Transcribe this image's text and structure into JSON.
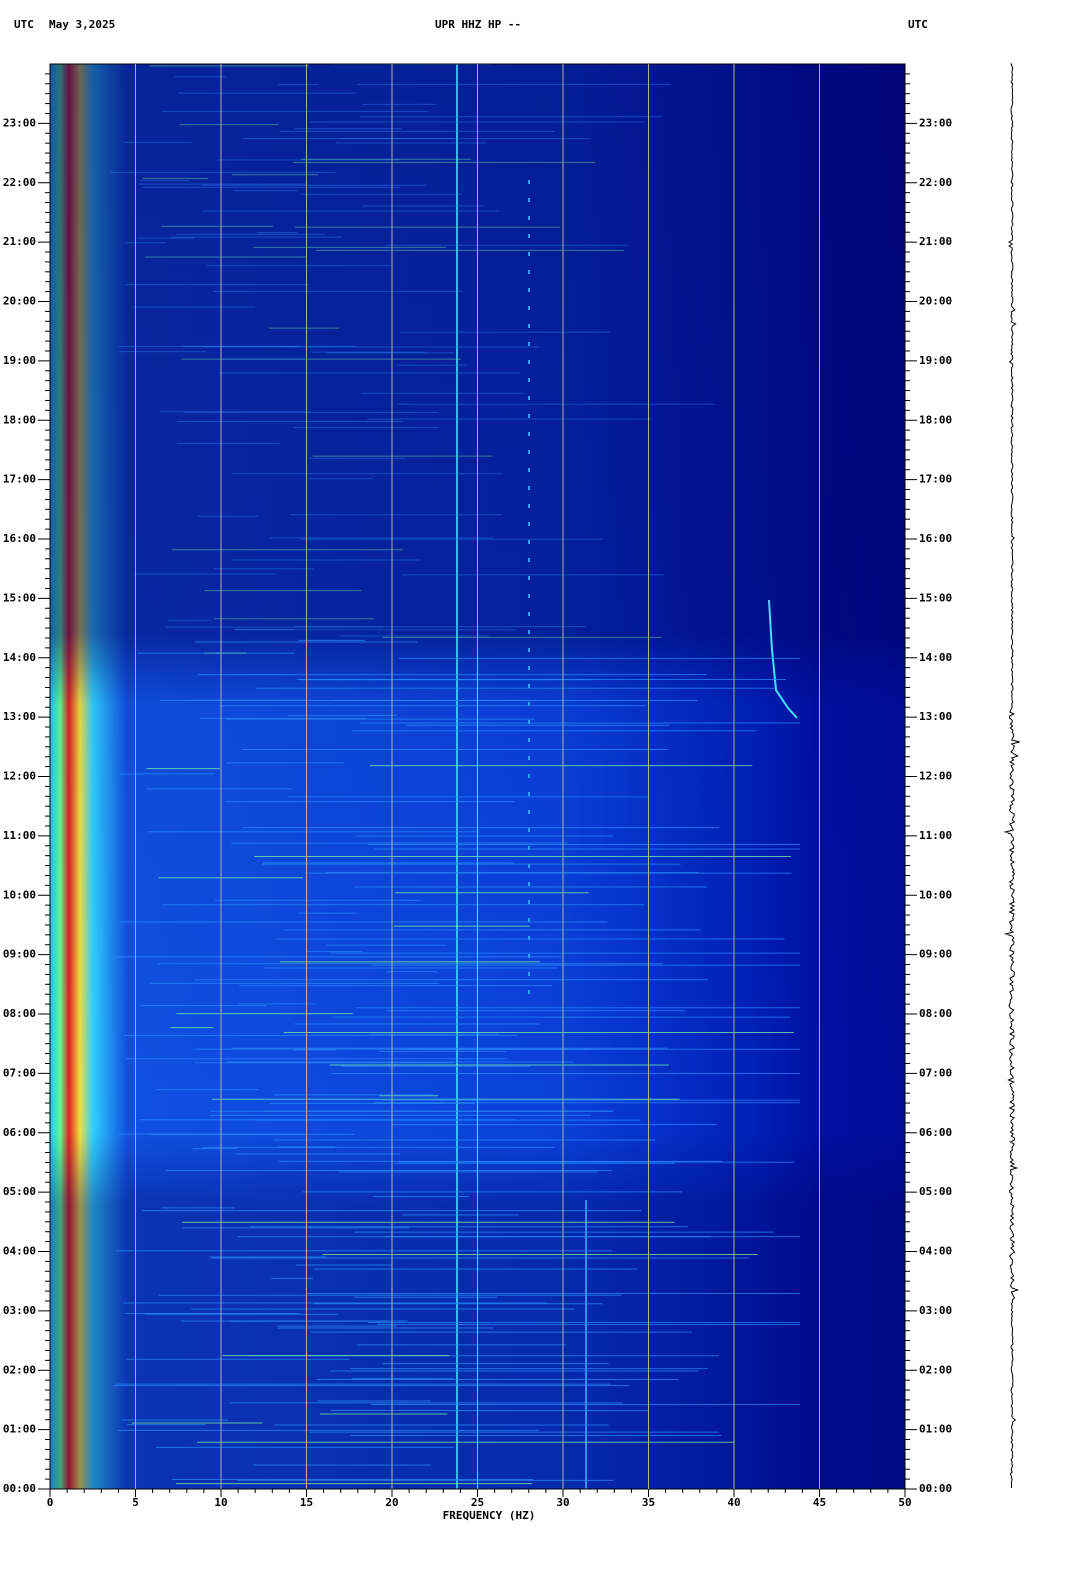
{
  "chart_data": {
    "type": "spectrogram",
    "title": "UPR HHZ HP --",
    "time_zone_left": "UTC",
    "date": "May 3,2025",
    "time_zone_right": "UTC",
    "xlabel": "FREQUENCY (HZ)",
    "xlim": [
      0,
      50
    ],
    "xticks": [
      0,
      5,
      10,
      15,
      20,
      25,
      30,
      35,
      40,
      45,
      50
    ],
    "ylim": [
      0,
      24
    ],
    "yticks": [
      {
        "value": 0,
        "label": "00:00"
      },
      {
        "value": 1,
        "label": "01:00"
      },
      {
        "value": 2,
        "label": "02:00"
      },
      {
        "value": 3,
        "label": "03:00"
      },
      {
        "value": 4,
        "label": "04:00"
      },
      {
        "value": 5,
        "label": "05:00"
      },
      {
        "value": 6,
        "label": "06:00"
      },
      {
        "value": 7,
        "label": "07:00"
      },
      {
        "value": 8,
        "label": "08:00"
      },
      {
        "value": 9,
        "label": "09:00"
      },
      {
        "value": 10,
        "label": "10:00"
      },
      {
        "value": 11,
        "label": "11:00"
      },
      {
        "value": 12,
        "label": "12:00"
      },
      {
        "value": 13,
        "label": "13:00"
      },
      {
        "value": 14,
        "label": "14:00"
      },
      {
        "value": 15,
        "label": "15:00"
      },
      {
        "value": 16,
        "label": "16:00"
      },
      {
        "value": 17,
        "label": "17:00"
      },
      {
        "value": 18,
        "label": "18:00"
      },
      {
        "value": 19,
        "label": "19:00"
      },
      {
        "value": 20,
        "label": "20:00"
      },
      {
        "value": 21,
        "label": "21:00"
      },
      {
        "value": 22,
        "label": "22:00"
      },
      {
        "value": 23,
        "label": "23:00"
      }
    ],
    "grid": true
  }
}
